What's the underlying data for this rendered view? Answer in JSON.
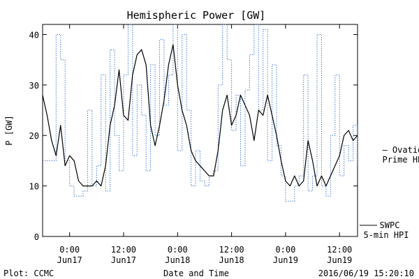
{
  "chart_data": {
    "type": "line",
    "title": "Hemispheric Power [GW]",
    "ylabel": "P [GW]",
    "xlabel": "Date and Time",
    "ylim": [
      0,
      42
    ],
    "xlim": [
      "2016-06-16 18:00",
      "2016-06-19 16:00"
    ],
    "yticks": [
      0,
      10,
      20,
      30,
      40
    ],
    "xticks": [
      {
        "line1": "0:00",
        "line2": "Jun17",
        "t": "2016-06-17 00:00"
      },
      {
        "line1": "12:00",
        "line2": "Jun17",
        "t": "2016-06-17 12:00"
      },
      {
        "line1": "0:00",
        "line2": "Jun18",
        "t": "2016-06-18 00:00"
      },
      {
        "line1": "12:00",
        "line2": "Jun18",
        "t": "2016-06-18 12:00"
      },
      {
        "line1": "0:00",
        "line2": "Jun19",
        "t": "2016-06-19 00:00"
      },
      {
        "line1": "12:00",
        "line2": "Jun19",
        "t": "2016-06-19 12:00"
      }
    ],
    "grid": false,
    "series": [
      {
        "name": "SWPC 5-min HPI",
        "legend_line1": "SWPC",
        "legend_line2": "5-min HPI",
        "color": "#000000",
        "style": "solid",
        "x": [
          "2016-06-16 18:00",
          "2016-06-16 19:00",
          "2016-06-16 20:00",
          "2016-06-16 21:00",
          "2016-06-16 22:00",
          "2016-06-16 23:00",
          "2016-06-17 00:00",
          "2016-06-17 01:00",
          "2016-06-17 02:00",
          "2016-06-17 03:00",
          "2016-06-17 04:00",
          "2016-06-17 05:00",
          "2016-06-17 06:00",
          "2016-06-17 07:00",
          "2016-06-17 08:00",
          "2016-06-17 09:00",
          "2016-06-17 10:00",
          "2016-06-17 11:00",
          "2016-06-17 12:00",
          "2016-06-17 13:00",
          "2016-06-17 14:00",
          "2016-06-17 15:00",
          "2016-06-17 16:00",
          "2016-06-17 17:00",
          "2016-06-17 18:00",
          "2016-06-17 19:00",
          "2016-06-17 20:00",
          "2016-06-17 21:00",
          "2016-06-17 22:00",
          "2016-06-17 23:00",
          "2016-06-18 00:00",
          "2016-06-18 01:00",
          "2016-06-18 02:00",
          "2016-06-18 03:00",
          "2016-06-18 04:00",
          "2016-06-18 05:00",
          "2016-06-18 06:00",
          "2016-06-18 07:00",
          "2016-06-18 08:00",
          "2016-06-18 09:00",
          "2016-06-18 10:00",
          "2016-06-18 11:00",
          "2016-06-18 12:00",
          "2016-06-18 13:00",
          "2016-06-18 14:00",
          "2016-06-18 15:00",
          "2016-06-18 16:00",
          "2016-06-18 17:00",
          "2016-06-18 18:00",
          "2016-06-18 19:00",
          "2016-06-18 20:00",
          "2016-06-18 21:00",
          "2016-06-18 22:00",
          "2016-06-18 23:00",
          "2016-06-19 00:00",
          "2016-06-19 01:00",
          "2016-06-19 02:00",
          "2016-06-19 03:00",
          "2016-06-19 04:00",
          "2016-06-19 05:00",
          "2016-06-19 06:00",
          "2016-06-19 07:00",
          "2016-06-19 08:00",
          "2016-06-19 09:00",
          "2016-06-19 10:00",
          "2016-06-19 11:00",
          "2016-06-19 12:00",
          "2016-06-19 13:00",
          "2016-06-19 14:00",
          "2016-06-19 15:00",
          "2016-06-19 16:00"
        ],
        "values": [
          28,
          24,
          19,
          16,
          22,
          14,
          16,
          15,
          11,
          10,
          10,
          10,
          11,
          10,
          14,
          22,
          26,
          33,
          24,
          23,
          32,
          36,
          37,
          34,
          22,
          18,
          22,
          27,
          34,
          38,
          30,
          25,
          22,
          17,
          15,
          14,
          13,
          12,
          12,
          17,
          25,
          28,
          22,
          24,
          28,
          26,
          24,
          19,
          25,
          24,
          28,
          24,
          20,
          15,
          11,
          10,
          12,
          10,
          11,
          19,
          15,
          10,
          12,
          10,
          12,
          14,
          16,
          20,
          21,
          19,
          20
        ]
      },
      {
        "name": "Ovation Prime HPI",
        "legend_line1": "— Ovation",
        "legend_line2": "Prime HPI",
        "color": "#1f5fc8",
        "style": "dotted",
        "x": [
          "2016-06-16 18:00",
          "2016-06-16 19:00",
          "2016-06-16 20:00",
          "2016-06-16 21:00",
          "2016-06-16 22:00",
          "2016-06-16 23:00",
          "2016-06-17 00:00",
          "2016-06-17 01:00",
          "2016-06-17 02:00",
          "2016-06-17 03:00",
          "2016-06-17 04:00",
          "2016-06-17 05:00",
          "2016-06-17 06:00",
          "2016-06-17 07:00",
          "2016-06-17 08:00",
          "2016-06-17 09:00",
          "2016-06-17 10:00",
          "2016-06-17 11:00",
          "2016-06-17 12:00",
          "2016-06-17 13:00",
          "2016-06-17 14:00",
          "2016-06-17 15:00",
          "2016-06-17 16:00",
          "2016-06-17 17:00",
          "2016-06-17 18:00",
          "2016-06-17 19:00",
          "2016-06-17 20:00",
          "2016-06-17 21:00",
          "2016-06-17 22:00",
          "2016-06-17 23:00",
          "2016-06-18 00:00",
          "2016-06-18 01:00",
          "2016-06-18 02:00",
          "2016-06-18 03:00",
          "2016-06-18 04:00",
          "2016-06-18 05:00",
          "2016-06-18 06:00",
          "2016-06-18 07:00",
          "2016-06-18 08:00",
          "2016-06-18 09:00",
          "2016-06-18 10:00",
          "2016-06-18 11:00",
          "2016-06-18 12:00",
          "2016-06-18 13:00",
          "2016-06-18 14:00",
          "2016-06-18 15:00",
          "2016-06-18 16:00",
          "2016-06-18 17:00",
          "2016-06-18 18:00",
          "2016-06-18 19:00",
          "2016-06-18 20:00",
          "2016-06-18 21:00",
          "2016-06-18 22:00",
          "2016-06-18 23:00",
          "2016-06-19 00:00",
          "2016-06-19 01:00",
          "2016-06-19 02:00",
          "2016-06-19 03:00",
          "2016-06-19 04:00",
          "2016-06-19 05:00",
          "2016-06-19 06:00",
          "2016-06-19 07:00",
          "2016-06-19 08:00",
          "2016-06-19 09:00",
          "2016-06-19 10:00",
          "2016-06-19 11:00",
          "2016-06-19 12:00",
          "2016-06-19 13:00",
          "2016-06-19 14:00",
          "2016-06-19 15:00",
          "2016-06-19 16:00"
        ],
        "values": [
          15,
          15,
          15,
          40,
          35,
          15,
          10,
          8,
          8,
          9,
          25,
          10,
          14,
          32,
          9,
          37,
          20,
          13,
          32,
          42,
          16,
          30,
          24,
          13,
          34,
          20,
          39,
          26,
          32,
          42,
          17,
          40,
          25,
          10,
          17,
          11,
          10,
          12,
          13,
          30,
          42,
          35,
          21,
          28,
          14,
          29,
          36,
          42,
          25,
          41,
          15,
          34,
          18,
          12,
          7,
          7,
          10,
          12,
          32,
          9,
          12,
          40,
          10,
          8,
          20,
          32,
          12,
          18,
          15,
          22,
          14
        ]
      }
    ]
  },
  "footer": {
    "left": "Plot: CCMC",
    "center": "Date and Time",
    "right": "2016/06/19 15:20:10"
  }
}
